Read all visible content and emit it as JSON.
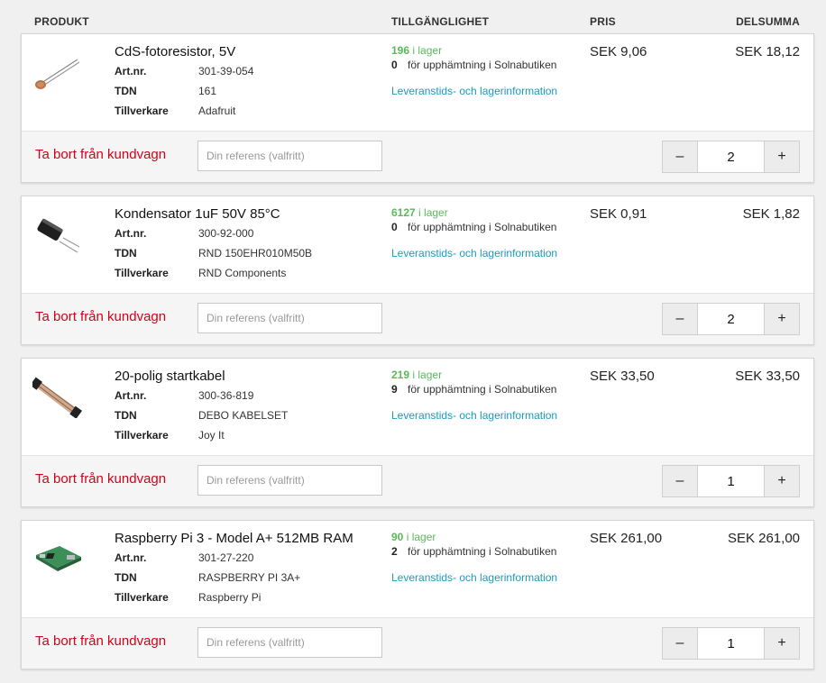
{
  "header": {
    "product": "PRODUKT",
    "availability": "TILLGÄNGLIGHET",
    "price": "PRIS",
    "subtotal": "DELSUMMA"
  },
  "labels": {
    "art_nr": "Art.nr.",
    "tdn": "TDN",
    "manufacturer": "Tillverkare",
    "in_stock": "i lager",
    "pickup": "för upphämtning i Solnabutiken",
    "delivery_info": "Leveranstids- och lagerinformation",
    "remove": "Ta bort från kundvagn",
    "reference_placeholder": "Din referens (valfritt)",
    "minus": "–",
    "plus": "+"
  },
  "items": [
    {
      "name": "CdS-fotoresistor, 5V",
      "art_nr": "301-39-054",
      "tdn": "161",
      "manufacturer": "Adafruit",
      "stock": "196",
      "pickup": "0",
      "price": "SEK 9,06",
      "subtotal": "SEK 18,12",
      "qty": "2",
      "image": "photoresistor-image"
    },
    {
      "name": "Kondensator 1uF 50V 85°C",
      "art_nr": "300-92-000",
      "tdn": "RND 150EHR010M50B",
      "manufacturer": "RND Components",
      "stock": "6127",
      "pickup": "0",
      "price": "SEK 0,91",
      "subtotal": "SEK 1,82",
      "qty": "2",
      "image": "capacitor-image"
    },
    {
      "name": "20-polig startkabel",
      "art_nr": "300-36-819",
      "tdn": "DEBO KABELSET",
      "manufacturer": "Joy It",
      "stock": "219",
      "pickup": "9",
      "price": "SEK 33,50",
      "subtotal": "SEK 33,50",
      "qty": "1",
      "image": "ribbon-cable-image"
    },
    {
      "name": "Raspberry Pi 3 - Model A+ 512MB RAM",
      "art_nr": "301-27-220",
      "tdn": "RASPBERRY PI 3A+",
      "manufacturer": "Raspberry Pi",
      "stock": "90",
      "pickup": "2",
      "price": "SEK 261,00",
      "subtotal": "SEK 261,00",
      "qty": "1",
      "image": "raspberry-pi-board-image"
    }
  ],
  "colors": {
    "stock_green": "#5cb85c",
    "link_blue": "#1a9bc0",
    "remove_red": "#d0021b"
  }
}
